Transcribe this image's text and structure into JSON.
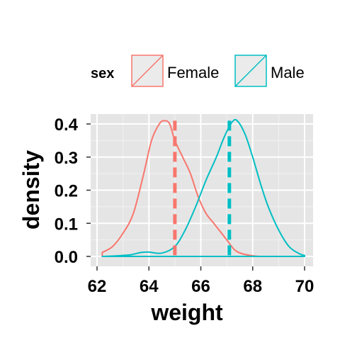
{
  "chart_data": {
    "type": "area",
    "title": "",
    "xlabel": "weight",
    "ylabel": "density",
    "xlim": [
      62,
      70
    ],
    "ylim": [
      0,
      0.4
    ],
    "x_ticks": [
      "62",
      "64",
      "66",
      "68",
      "70"
    ],
    "y_ticks": [
      "0.0",
      "0.1",
      "0.2",
      "0.3",
      "0.4"
    ],
    "grid": true,
    "legend": {
      "title": "sex",
      "position": "top",
      "entries": [
        "Female",
        "Male"
      ]
    },
    "series": [
      {
        "name": "Female",
        "color": "#F8766D",
        "mean": 65.0,
        "x": [
          62.2,
          62.6,
          63.0,
          63.4,
          63.8,
          64.1,
          64.4,
          64.6,
          64.8,
          65.0,
          65.3,
          65.6,
          65.9,
          66.2,
          66.5,
          66.8,
          67.0,
          67.3,
          67.6,
          68.0,
          68.3
        ],
        "y": [
          0.012,
          0.03,
          0.07,
          0.13,
          0.25,
          0.35,
          0.4,
          0.41,
          0.4,
          0.35,
          0.3,
          0.25,
          0.18,
          0.13,
          0.1,
          0.07,
          0.05,
          0.02,
          0.008,
          0.002,
          0.0
        ]
      },
      {
        "name": "Male",
        "color": "#00BFC4",
        "mean": 67.1,
        "x": [
          62.2,
          62.8,
          63.3,
          63.7,
          64.0,
          64.5,
          65.0,
          65.4,
          65.8,
          66.2,
          66.6,
          66.9,
          67.2,
          67.4,
          67.7,
          68.0,
          68.3,
          68.6,
          69.0,
          69.4,
          69.8,
          70.0
        ],
        "y": [
          0.0,
          0.002,
          0.005,
          0.012,
          0.013,
          0.01,
          0.03,
          0.08,
          0.15,
          0.23,
          0.3,
          0.36,
          0.405,
          0.41,
          0.37,
          0.3,
          0.22,
          0.15,
          0.08,
          0.03,
          0.008,
          0.003
        ]
      }
    ]
  }
}
